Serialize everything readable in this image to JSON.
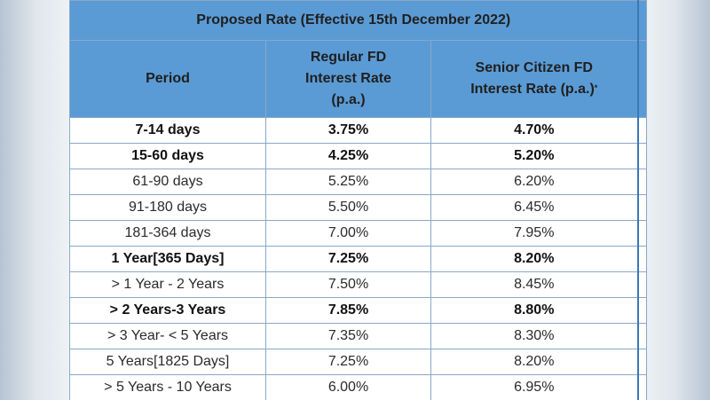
{
  "table": {
    "title": "Proposed Rate (Effective 15th December 2022)",
    "headers": {
      "period": "Period",
      "regular": [
        "Regular FD",
        "Interest Rate",
        "(p.a.)"
      ],
      "senior": [
        "Senior Citizen FD",
        "Interest Rate (p.a.)"
      ],
      "senior_mark": "*"
    },
    "rows": [
      {
        "period": "7-14 days",
        "regular": "3.75%",
        "senior": "4.70%",
        "bold": true
      },
      {
        "period": "15-60 days",
        "regular": "4.25%",
        "senior": "5.20%",
        "bold": true
      },
      {
        "period": "61-90 days",
        "regular": "5.25%",
        "senior": "6.20%",
        "bold": false
      },
      {
        "period": "91-180 days",
        "regular": "5.50%",
        "senior": "6.45%",
        "bold": false
      },
      {
        "period": "181-364 days",
        "regular": "7.00%",
        "senior": "7.95%",
        "bold": false
      },
      {
        "period": "1 Year[365 Days]",
        "regular": "7.25%",
        "senior": "8.20%",
        "bold": true
      },
      {
        "period": "> 1 Year - 2 Years",
        "regular": "7.50%",
        "senior": "8.45%",
        "bold": false
      },
      {
        "period": "> 2 Years-3 Years",
        "regular": "7.85%",
        "senior": "8.80%",
        "bold": true
      },
      {
        "period": "> 3 Year- < 5 Years",
        "regular": "7.35%",
        "senior": "8.30%",
        "bold": false
      },
      {
        "period": "5 Years[1825 Days]",
        "regular": "7.25%",
        "senior": "8.20%",
        "bold": false
      },
      {
        "period": "> 5 Years - 10 Years",
        "regular": "6.00%",
        "senior": "6.95%",
        "bold": false
      }
    ]
  },
  "colors": {
    "header_bg": "#5b9bd5",
    "border": "#8aa8c8",
    "edge_border": "#3b78b8"
  }
}
